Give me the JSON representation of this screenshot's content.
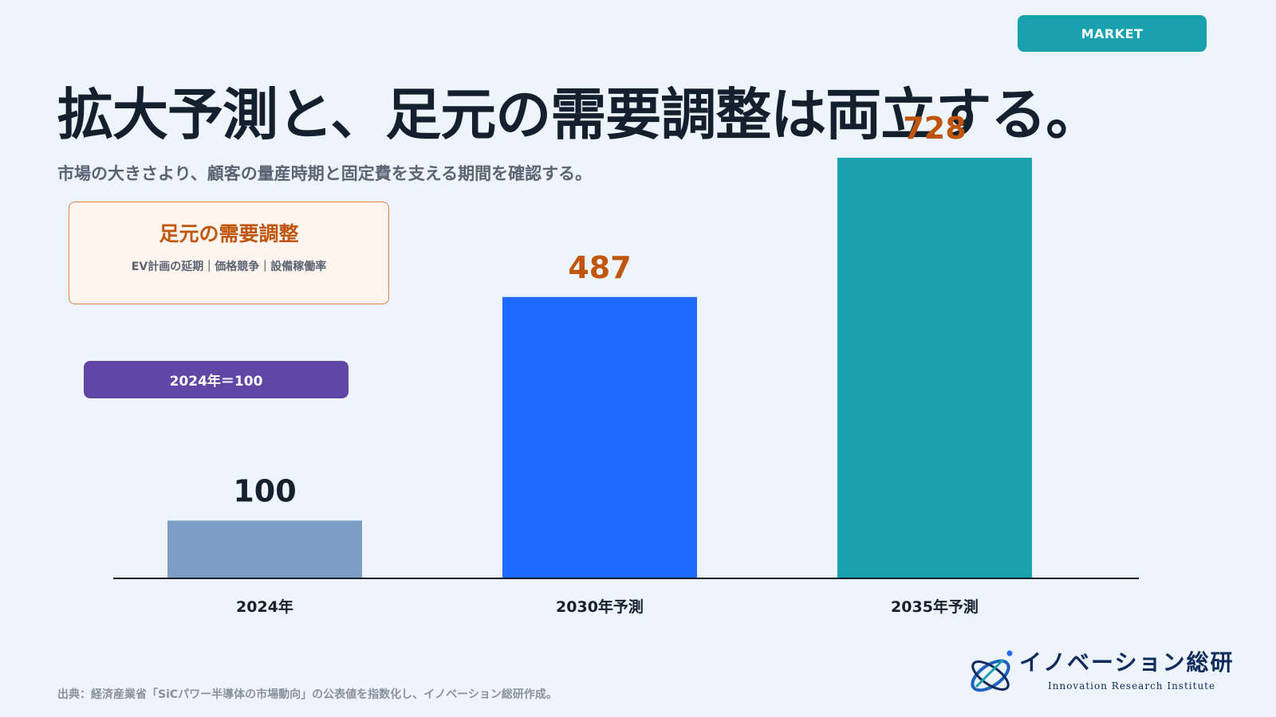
{
  "tag": "MARKET",
  "title": "拡大予測と、足元の需要調整は両立する。",
  "subtitle": "市場の大きさより、顧客の量産時期と固定費を支える期間を確認する。",
  "callout": {
    "title": "足元の需要調整",
    "detail": "EV計画の延期｜価格競争｜設備稼働率"
  },
  "index_note": "2024年＝100",
  "source": "出典：経済産業省「SiCパワー半導体の市場動向」の公表値を指数化し、イノベーション総研作成。",
  "logo": {
    "name_jp": "イノベーション総研",
    "name_en": "Innovation Research Institute"
  },
  "chart_data": {
    "type": "bar",
    "categories": [
      "2024年",
      "2030年予測",
      "2035年予測"
    ],
    "values": [
      100,
      487,
      728
    ],
    "bar_colors": [
      "#7b9dc7",
      "#1f6bff",
      "#1aa1ae"
    ],
    "label_colors": [
      "#14202e",
      "#c0560e",
      "#c0560e"
    ],
    "ylim": [
      0,
      800
    ],
    "grid": false
  }
}
